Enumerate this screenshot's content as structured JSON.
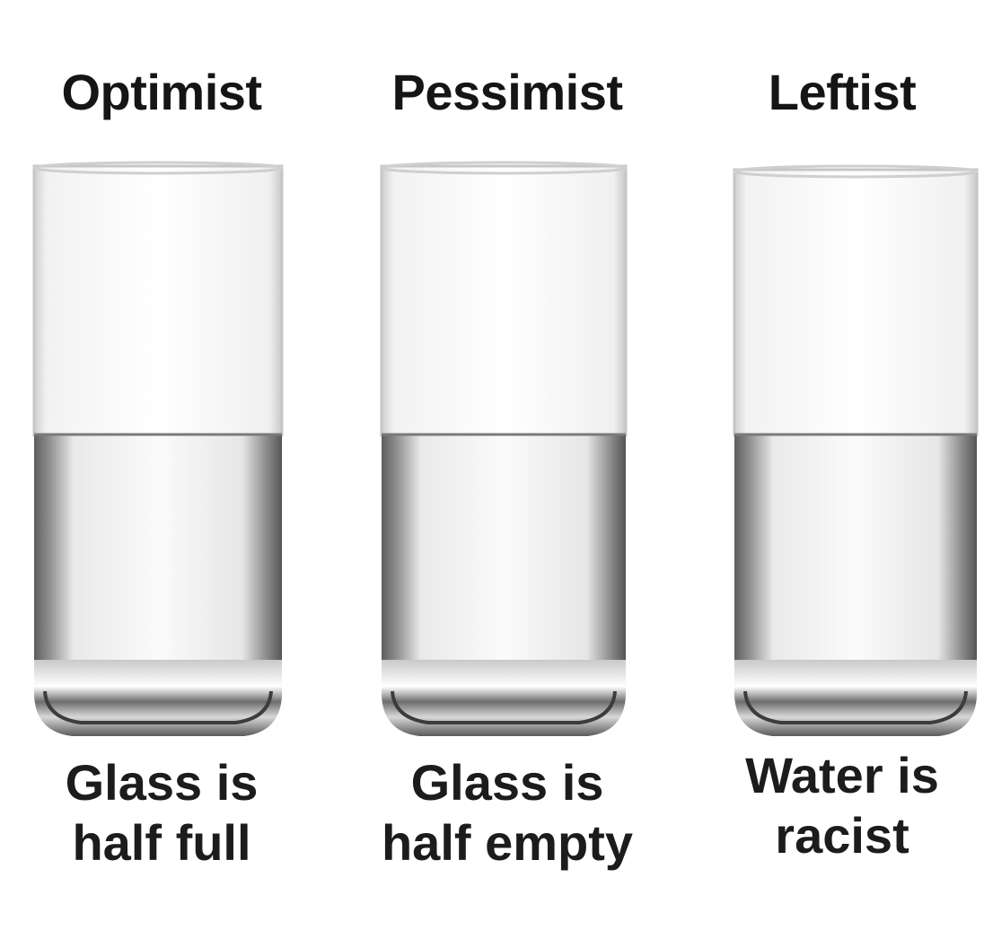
{
  "panels": [
    {
      "title": "Optimist",
      "caption_line1": "Glass is",
      "caption_line2": "half full",
      "water_level": 0.5
    },
    {
      "title": "Pessimist",
      "caption_line1": "Glass is",
      "caption_line2": "half empty",
      "water_level": 0.5
    },
    {
      "title": "Leftist",
      "caption_line1": "Water is",
      "caption_line2": "racist",
      "water_level": 0.5
    }
  ],
  "colors": {
    "background": "#ffffff",
    "text": "#151515",
    "water_edge": "#6b6b6b",
    "water_center": "#f4f4f4",
    "glass_edge": "#bdbdbd"
  },
  "icons": [
    "drinking-glass-icon",
    "drinking-glass-icon",
    "drinking-glass-icon"
  ]
}
